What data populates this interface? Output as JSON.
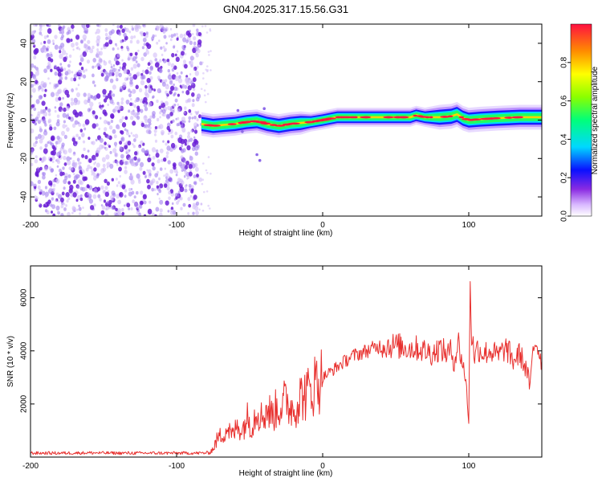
{
  "title": "GN04.2025.317.15.56.G31",
  "colors": {
    "axis": "#000000",
    "snr_line": "#e8312f",
    "scatter_dark": "#6a1fd6",
    "scatter_light": "#cdb6f7"
  },
  "chart_data": [
    {
      "type": "heatmap",
      "name": "spectrogram",
      "xlabel": "Height of straight line (km)",
      "ylabel": "Frequency (Hz)",
      "xlim": [
        -200,
        150
      ],
      "ylim": [
        -50,
        50
      ],
      "xticks": [
        -200,
        -100,
        0,
        100
      ],
      "yticks": [
        -40,
        -20,
        0,
        20,
        40
      ],
      "noise_region": [
        -200,
        -83
      ],
      "ridge": {
        "x": [
          -83,
          -75,
          -68,
          -60,
          -52,
          -45,
          -38,
          -30,
          -22,
          -15,
          -8,
          0,
          10,
          20,
          40,
          60,
          64,
          70,
          80,
          88,
          92,
          96,
          100,
          108,
          120,
          135,
          150
        ],
        "freq": [
          -2,
          -3,
          -2.5,
          -2,
          -1,
          -0.5,
          -2,
          -3,
          -2,
          -1.5,
          -1,
          0,
          1.5,
          1.5,
          1.5,
          1.5,
          2.5,
          1.5,
          1.5,
          2,
          3,
          1,
          0,
          0.5,
          1,
          1.5,
          1.5
        ]
      },
      "outliers": [
        [
          -45,
          -18
        ],
        [
          -43,
          -21
        ],
        [
          -55,
          -6
        ],
        [
          -58,
          5
        ],
        [
          -40,
          6
        ]
      ],
      "colorbar": {
        "label": "Normalized spectral amplitude",
        "range": [
          0,
          1
        ],
        "ticks": [
          0.0,
          0.2,
          0.4,
          0.6,
          0.8
        ]
      }
    },
    {
      "type": "line",
      "name": "snr",
      "xlabel": "Height of straight line (km)",
      "ylabel": "SNR (10 * v/v)",
      "xlim": [
        -200,
        150
      ],
      "ylim": [
        0,
        7200
      ],
      "xticks": [
        -200,
        -100,
        0,
        100
      ],
      "yticks": [
        2000,
        4000,
        6000
      ],
      "series": [
        {
          "name": "SNR",
          "x": [
            -200,
            -180,
            -160,
            -140,
            -120,
            -100,
            -85,
            -78,
            -75,
            -72,
            -68,
            -65,
            -62,
            -58,
            -55,
            -52,
            -48,
            -45,
            -42,
            -38,
            -35,
            -30,
            -25,
            -20,
            -15,
            -10,
            -5,
            0,
            5,
            10,
            15,
            20,
            25,
            30,
            35,
            40,
            45,
            50,
            55,
            60,
            65,
            70,
            75,
            80,
            85,
            88,
            90,
            93,
            95,
            97,
            99,
            100,
            101,
            102,
            104,
            106,
            110,
            115,
            120,
            125,
            128,
            130,
            135,
            140,
            142,
            144,
            146,
            150
          ],
          "y": [
            150,
            150,
            160,
            150,
            150,
            150,
            150,
            160,
            300,
            700,
            900,
            1100,
            800,
            1200,
            1000,
            1500,
            1200,
            1900,
            1500,
            1800,
            1600,
            1900,
            2100,
            1800,
            2300,
            2400,
            2800,
            3000,
            3200,
            3400,
            3600,
            3800,
            3900,
            4000,
            4100,
            4200,
            4200,
            4200,
            4150,
            4100,
            4100,
            4000,
            3900,
            4100,
            3900,
            4000,
            3600,
            4300,
            3700,
            3300,
            2200,
            1200,
            6800,
            4600,
            3800,
            4100,
            3900,
            4000,
            3800,
            4100,
            3900,
            3600,
            3900,
            3200,
            2600,
            4000,
            4400,
            3600
          ]
        }
      ]
    }
  ]
}
